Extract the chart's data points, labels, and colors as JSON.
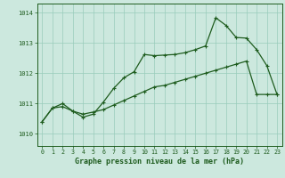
{
  "xlabel": "Graphe pression niveau de la mer (hPa)",
  "bg_color": "#cce8de",
  "grid_color": "#99ccbb",
  "line_color": "#1e5c1e",
  "xlim": [
    -0.5,
    23.5
  ],
  "ylim": [
    1009.6,
    1014.3
  ],
  "yticks": [
    1010,
    1011,
    1012,
    1013,
    1014
  ],
  "xticks": [
    0,
    1,
    2,
    3,
    4,
    5,
    6,
    7,
    8,
    9,
    10,
    11,
    12,
    13,
    14,
    15,
    16,
    17,
    18,
    19,
    20,
    21,
    22,
    23
  ],
  "line1_x": [
    0,
    1,
    2,
    3,
    4,
    5,
    6,
    7,
    8,
    9,
    10,
    11,
    12,
    13,
    14,
    15,
    16,
    17,
    18,
    19,
    20,
    21,
    22,
    23
  ],
  "line1_y": [
    1010.4,
    1010.85,
    1010.9,
    1010.75,
    1010.65,
    1010.72,
    1010.8,
    1010.95,
    1011.1,
    1011.25,
    1011.4,
    1011.55,
    1011.6,
    1011.7,
    1011.8,
    1011.9,
    1012.0,
    1012.1,
    1012.2,
    1012.3,
    1012.4,
    1011.3,
    1011.3,
    1011.3
  ],
  "line2_x": [
    0,
    1,
    2,
    3,
    4,
    5,
    6,
    7,
    8,
    9,
    10,
    11,
    12,
    13,
    14,
    15,
    16,
    17,
    18,
    19,
    20,
    21,
    22,
    23
  ],
  "line2_y": [
    1010.4,
    1010.85,
    1011.0,
    1010.75,
    1010.55,
    1010.65,
    1011.05,
    1011.5,
    1011.85,
    1012.05,
    1012.62,
    1012.58,
    1012.6,
    1012.62,
    1012.68,
    1012.78,
    1012.9,
    1013.83,
    1013.58,
    1013.18,
    1013.16,
    1012.78,
    1012.25,
    1011.3
  ]
}
